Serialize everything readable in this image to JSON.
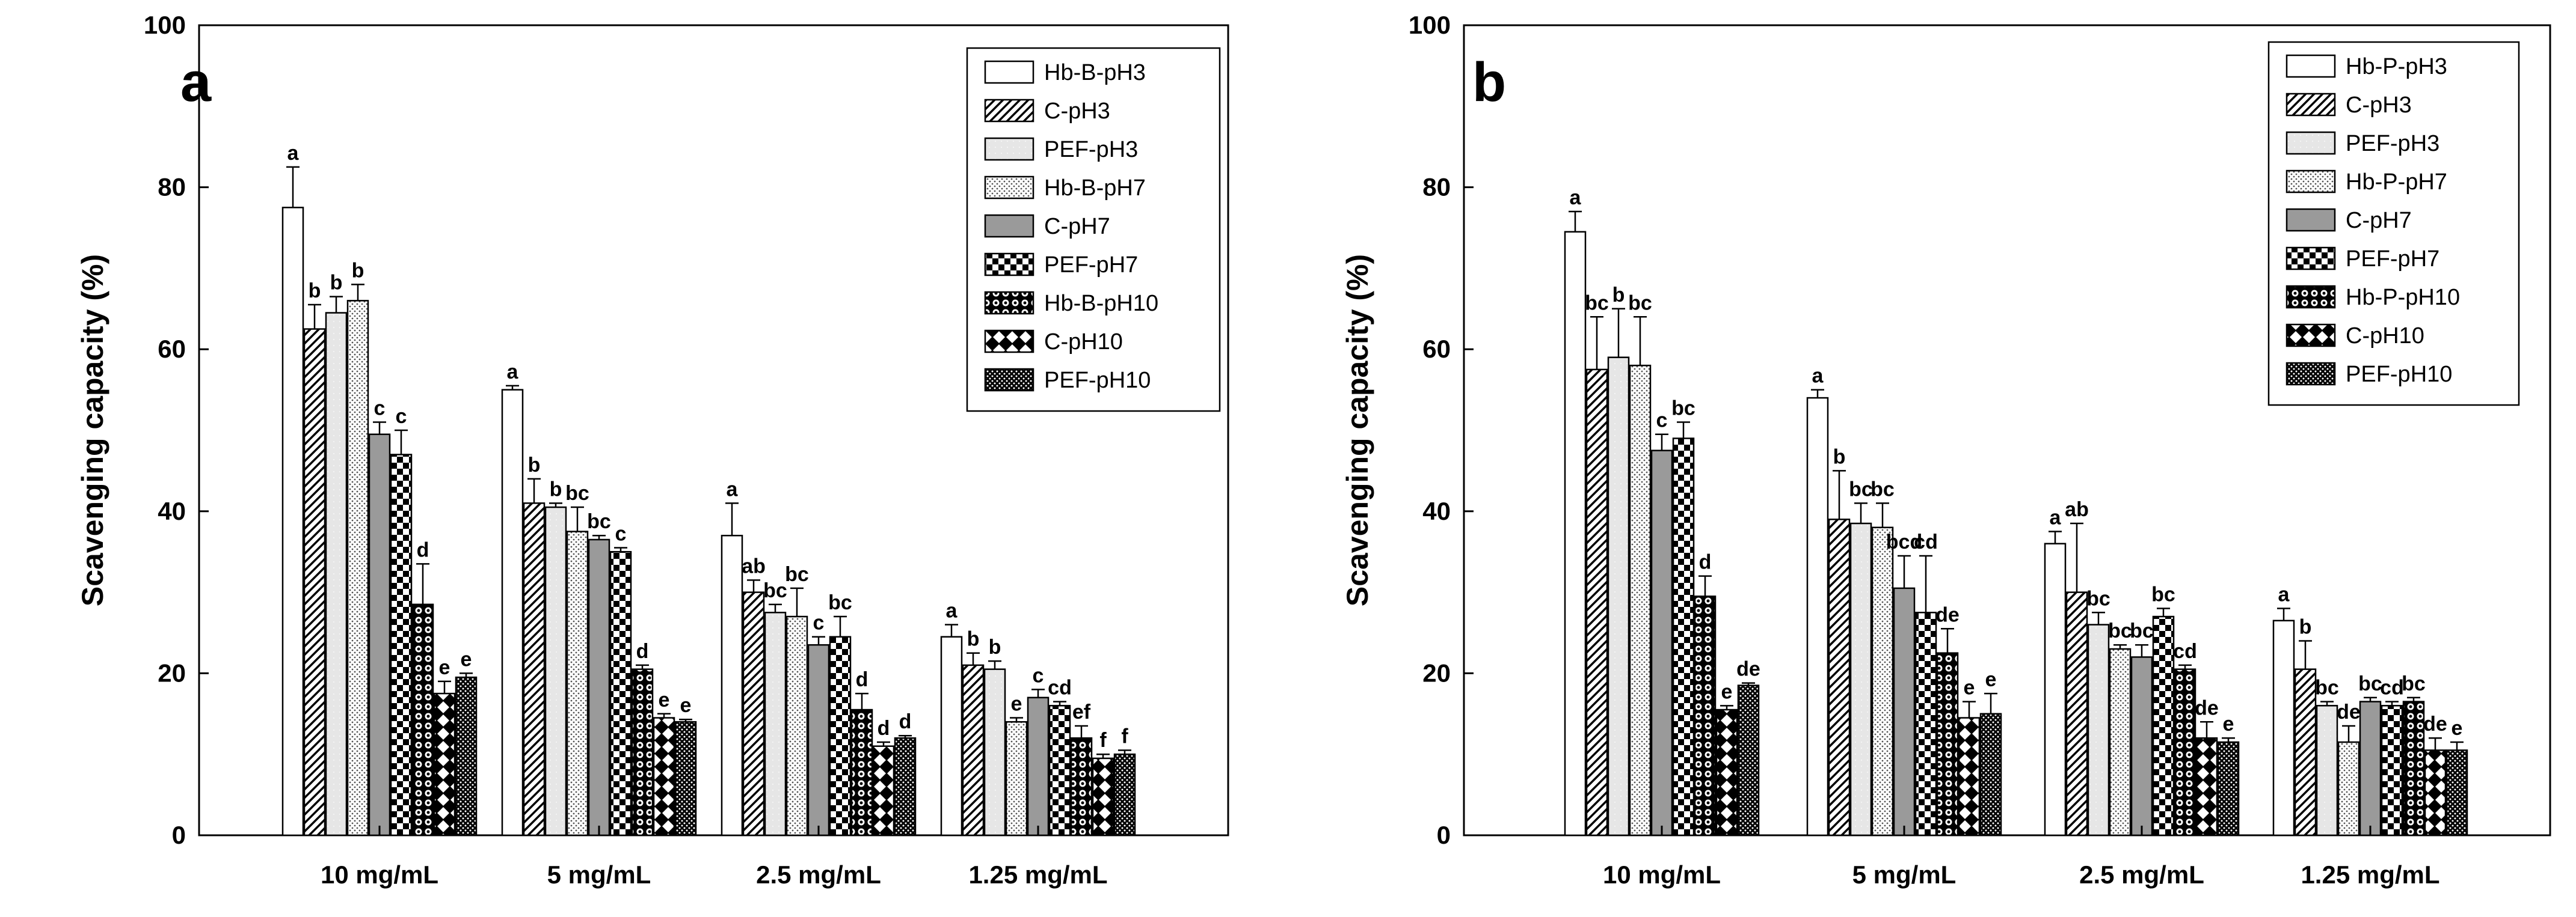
{
  "patterns": [
    "plain",
    "hatch",
    "light",
    "dots",
    "gray",
    "checker",
    "circles",
    "diamonds",
    "dense"
  ],
  "chart_data": [
    {
      "type": "bar",
      "panel": "a",
      "title": "",
      "xlabel": "",
      "ylabel": "Scavenging capacity (%)",
      "ylim": [
        0,
        100
      ],
      "yticks": [
        0,
        20,
        40,
        60,
        80,
        100
      ],
      "categories": [
        "10 mg/mL",
        "5 mg/mL",
        "2.5 mg/mL",
        "1.25 mg/mL"
      ],
      "legend_position": "top-right",
      "series": [
        {
          "name": "Hb-B-pH3",
          "values": [
            77.5,
            55.0,
            37.0,
            24.5
          ],
          "errors": [
            5.0,
            0.5,
            4.0,
            1.5
          ],
          "letters": [
            "a",
            "a",
            "a",
            "a"
          ]
        },
        {
          "name": "C-pH3",
          "values": [
            62.5,
            41.0,
            30.0,
            21.0
          ],
          "errors": [
            3.0,
            3.0,
            1.5,
            1.5
          ],
          "letters": [
            "b",
            "b",
            "ab",
            "b"
          ]
        },
        {
          "name": "PEF-pH3",
          "values": [
            64.5,
            40.5,
            27.5,
            20.5
          ],
          "errors": [
            2.0,
            0.5,
            1.0,
            1.0
          ],
          "letters": [
            "b",
            "b",
            "bc",
            "b"
          ]
        },
        {
          "name": "Hb-B-pH7",
          "values": [
            66.0,
            37.5,
            27.0,
            14.0
          ],
          "errors": [
            2.0,
            3.0,
            3.5,
            0.5
          ],
          "letters": [
            "b",
            "bc",
            "bc",
            "e"
          ]
        },
        {
          "name": "C-pH7",
          "values": [
            49.5,
            36.5,
            23.5,
            17.0
          ],
          "errors": [
            1.5,
            0.5,
            1.0,
            1.0
          ],
          "letters": [
            "c",
            "bc",
            "c",
            "c"
          ]
        },
        {
          "name": "PEF-pH7",
          "values": [
            47.0,
            35.0,
            24.5,
            16.0
          ],
          "errors": [
            3.0,
            0.5,
            2.5,
            0.5
          ],
          "letters": [
            "c",
            "c",
            "bc",
            "cd"
          ]
        },
        {
          "name": "Hb-B-pH10",
          "values": [
            28.5,
            20.5,
            15.5,
            12.0
          ],
          "errors": [
            5.0,
            0.5,
            2.0,
            1.5
          ],
          "letters": [
            "d",
            "d",
            "d",
            "ef"
          ]
        },
        {
          "name": "C-pH10",
          "values": [
            17.5,
            14.5,
            11.0,
            9.5
          ],
          "errors": [
            1.5,
            0.5,
            0.5,
            0.5
          ],
          "letters": [
            "e",
            "e",
            "d",
            "f"
          ]
        },
        {
          "name": "PEF-pH10",
          "values": [
            19.5,
            14.0,
            12.0,
            10.0
          ],
          "errors": [
            0.5,
            0.3,
            0.3,
            0.5
          ],
          "letters": [
            "e",
            "e",
            "d",
            "f"
          ]
        }
      ]
    },
    {
      "type": "bar",
      "panel": "b",
      "title": "",
      "xlabel": "",
      "ylabel": "Scavenging capacity (%)",
      "ylim": [
        0,
        100
      ],
      "yticks": [
        0,
        20,
        40,
        60,
        80,
        100
      ],
      "categories": [
        "10 mg/mL",
        "5 mg/mL",
        "2.5 mg/mL",
        "1.25 mg/mL"
      ],
      "legend_position": "top-right",
      "series": [
        {
          "name": "Hb-P-pH3",
          "values": [
            74.5,
            54.0,
            36.0,
            26.5
          ],
          "errors": [
            2.5,
            1.0,
            1.5,
            1.5
          ],
          "letters": [
            "a",
            "a",
            "a",
            "a"
          ]
        },
        {
          "name": "C-pH3",
          "values": [
            57.5,
            39.0,
            30.0,
            20.5
          ],
          "errors": [
            6.5,
            6.0,
            8.5,
            3.5
          ],
          "letters": [
            "bc",
            "b",
            "ab",
            "b"
          ]
        },
        {
          "name": "PEF-pH3",
          "values": [
            59.0,
            38.5,
            26.0,
            16.0
          ],
          "errors": [
            6.0,
            2.5,
            1.5,
            0.5
          ],
          "letters": [
            "b",
            "bc",
            "bc",
            "bc"
          ]
        },
        {
          "name": "Hb-P-pH7",
          "values": [
            58.0,
            38.0,
            23.0,
            11.5
          ],
          "errors": [
            6.0,
            3.0,
            0.5,
            2.0
          ],
          "letters": [
            "bc",
            "bc",
            "bc",
            "de"
          ]
        },
        {
          "name": "C-pH7",
          "values": [
            47.5,
            30.5,
            22.0,
            16.5
          ],
          "errors": [
            2.0,
            4.0,
            1.5,
            0.5
          ],
          "letters": [
            "c",
            "bcd",
            "bc",
            "bc"
          ]
        },
        {
          "name": "PEF-pH7",
          "values": [
            49.0,
            27.5,
            27.0,
            16.0
          ],
          "errors": [
            2.0,
            7.0,
            1.0,
            0.5
          ],
          "letters": [
            "bc",
            "cd",
            "bc",
            "cd"
          ]
        },
        {
          "name": "Hb-P-pH10",
          "values": [
            29.5,
            22.5,
            20.5,
            16.5
          ],
          "errors": [
            2.5,
            3.0,
            0.5,
            0.5
          ],
          "letters": [
            "d",
            "de",
            "cd",
            "bc"
          ]
        },
        {
          "name": "C-pH10",
          "values": [
            15.5,
            14.5,
            12.0,
            10.5
          ],
          "errors": [
            0.5,
            2.0,
            2.0,
            1.5
          ],
          "letters": [
            "e",
            "e",
            "de",
            "de"
          ]
        },
        {
          "name": "PEF-pH10",
          "values": [
            18.5,
            15.0,
            11.5,
            10.5
          ],
          "errors": [
            0.3,
            2.5,
            0.5,
            1.0
          ],
          "letters": [
            "de",
            "e",
            "e",
            "e"
          ]
        }
      ]
    }
  ]
}
